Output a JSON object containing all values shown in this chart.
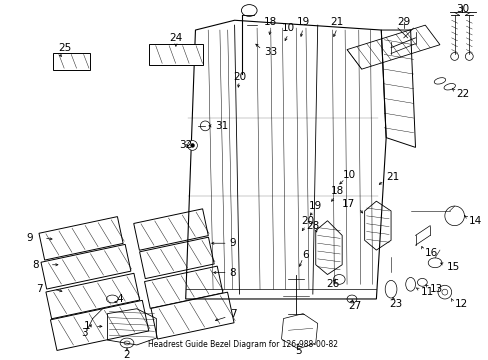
{
  "title": "Headrest Guide Bezel Diagram for 126-988-00-82",
  "bg_color": "#ffffff",
  "fig_width": 4.89,
  "fig_height": 3.6,
  "dpi": 100
}
